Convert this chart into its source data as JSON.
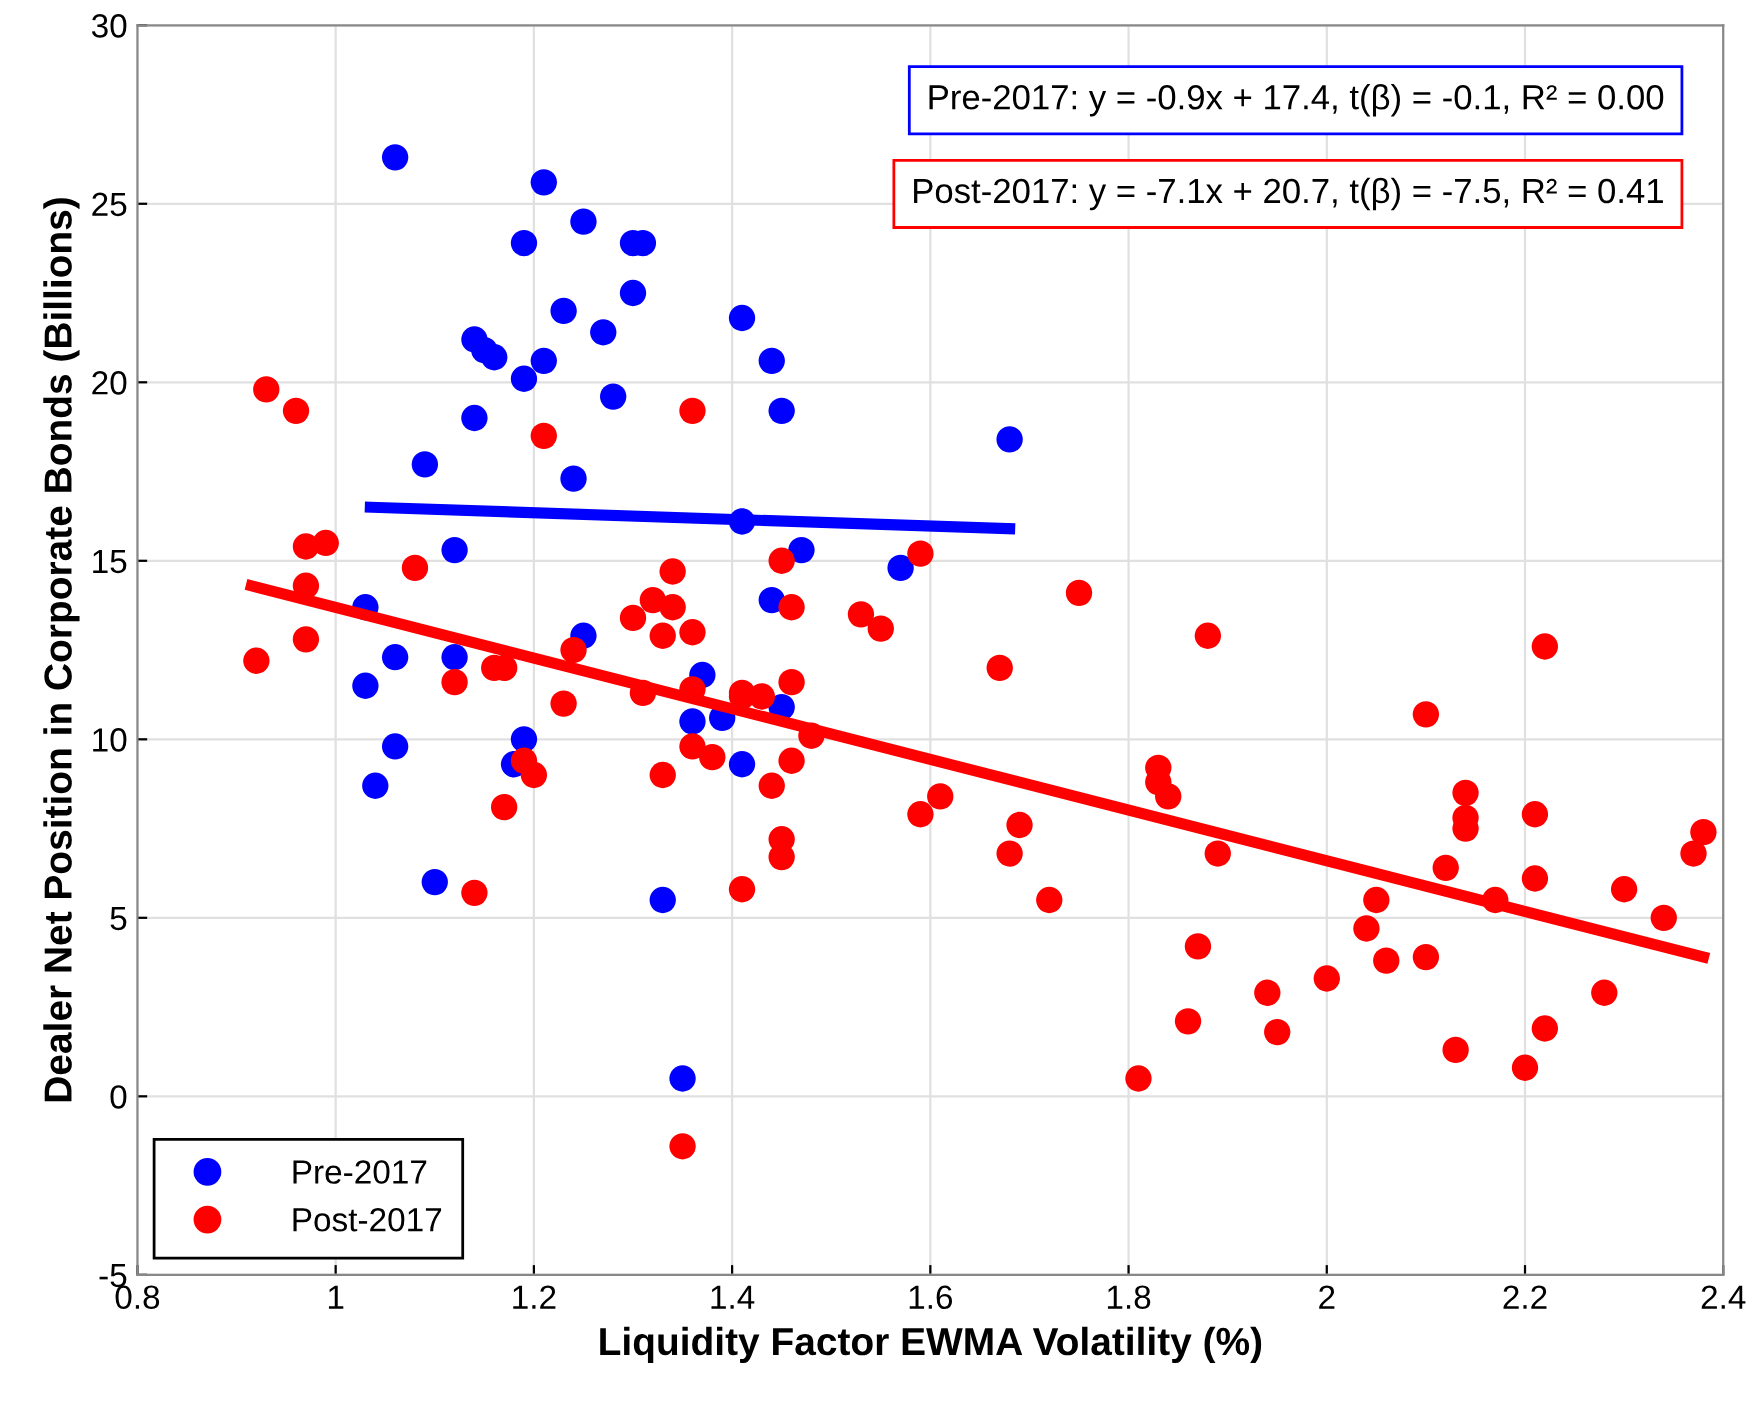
{
  "chart_data": {
    "type": "scatter",
    "xlabel": "Liquidity Factor EWMA Volatility (%)",
    "ylabel": "Dealer Net Position in Corporate Bonds (Billions)",
    "xlim": [
      0.8,
      2.4
    ],
    "ylim": [
      -5,
      30
    ],
    "xticks": [
      0.8,
      1,
      1.2,
      1.4,
      1.6,
      1.8,
      2,
      2.2,
      2.4
    ],
    "yticks": [
      -5,
      0,
      5,
      10,
      15,
      20,
      25,
      30
    ],
    "grid": true,
    "legend": "bottom left",
    "marker": "circle",
    "annotations": [
      "Pre-2017: y = -0.9x + 17.4, t(β) = -0.1, R² = 0.00",
      "Post-2017: y = -7.1x + 20.7, t(β) = -7.5, R² = 0.41"
    ],
    "series": [
      {
        "name": "Pre-2017",
        "color": "#0000ff",
        "x": [
          1.06,
          1.21,
          1.25,
          1.19,
          1.3,
          1.31,
          1.23,
          1.3,
          1.14,
          1.15,
          1.16,
          1.21,
          1.27,
          1.19,
          1.41,
          1.44,
          1.28,
          1.45,
          1.14,
          1.09,
          1.24,
          1.68,
          1.41,
          1.57,
          1.47,
          1.44,
          1.12,
          1.03,
          1.25,
          1.06,
          1.12,
          1.03,
          1.37,
          1.06,
          1.04,
          1.36,
          1.39,
          1.45,
          1.19,
          1.18,
          1.41,
          1.1,
          1.33,
          1.35
        ],
        "values": [
          26.3,
          25.6,
          24.5,
          23.9,
          23.9,
          23.9,
          22.0,
          22.5,
          21.2,
          20.9,
          20.7,
          20.6,
          21.4,
          20.1,
          21.8,
          20.6,
          19.6,
          19.2,
          19.0,
          17.7,
          17.3,
          18.4,
          16.1,
          14.8,
          15.3,
          13.9,
          15.3,
          13.7,
          12.9,
          12.3,
          12.3,
          11.5,
          11.8,
          9.8,
          8.7,
          10.5,
          10.6,
          10.9,
          10.0,
          9.3,
          9.3,
          6.0,
          5.5,
          0.5
        ]
      },
      {
        "name": "Post-2017",
        "color": "#ff0000",
        "x": [
          0.93,
          0.96,
          0.97,
          0.99,
          0.97,
          1.08,
          0.92,
          0.97,
          1.21,
          1.36,
          1.12,
          1.16,
          1.17,
          1.24,
          1.23,
          1.3,
          1.32,
          1.34,
          1.34,
          1.36,
          1.33,
          1.31,
          1.36,
          1.41,
          1.43,
          1.46,
          1.45,
          1.46,
          1.41,
          1.48,
          1.2,
          1.17,
          1.19,
          1.33,
          1.36,
          1.38,
          1.44,
          1.46,
          1.45,
          1.45,
          1.41,
          1.14,
          1.35,
          1.53,
          1.55,
          1.59,
          1.59,
          1.61,
          1.67,
          1.68,
          1.69,
          1.72,
          1.75,
          1.81,
          1.83,
          1.83,
          1.84,
          1.88,
          1.89,
          1.87,
          1.86,
          1.94,
          1.95,
          2.0,
          2.04,
          2.05,
          2.06,
          2.1,
          2.1,
          2.12,
          2.14,
          2.14,
          2.14,
          2.13,
          2.17,
          2.2,
          2.21,
          2.21,
          2.22,
          2.22,
          2.28,
          2.3,
          2.34,
          2.37,
          2.38
        ],
        "values": [
          19.8,
          19.2,
          15.4,
          15.5,
          14.3,
          14.8,
          12.2,
          12.8,
          18.5,
          19.2,
          11.6,
          12.0,
          12.0,
          12.5,
          11.0,
          13.4,
          13.9,
          14.7,
          13.7,
          13.0,
          12.9,
          11.3,
          11.4,
          11.3,
          11.2,
          11.6,
          15.0,
          13.7,
          11.2,
          10.1,
          9.0,
          8.1,
          9.4,
          9.0,
          9.8,
          9.5,
          8.7,
          9.4,
          7.2,
          6.7,
          5.8,
          5.7,
          -1.4,
          13.5,
          13.1,
          15.2,
          7.9,
          8.4,
          12.0,
          6.8,
          7.6,
          5.5,
          14.1,
          0.5,
          9.2,
          8.8,
          8.4,
          12.9,
          6.8,
          4.2,
          2.1,
          2.9,
          1.8,
          3.3,
          4.7,
          5.5,
          3.8,
          3.9,
          10.7,
          6.4,
          7.5,
          7.8,
          8.5,
          1.3,
          5.5,
          0.8,
          6.1,
          7.9,
          12.6,
          1.9,
          2.9,
          5.8,
          5.0,
          6.8,
          7.4
        ]
      },
      {
        "color": "#0000ff",
        "type": "line",
        "marker": "none",
        "x": [
          1.035,
          1.68
        ],
        "values": [
          16.5,
          15.9
        ]
      },
      {
        "color": "#ff0000",
        "type": "line",
        "marker": "none",
        "x": [
          0.915,
          2.38
        ],
        "values": [
          14.3,
          3.9
        ]
      }
    ]
  }
}
